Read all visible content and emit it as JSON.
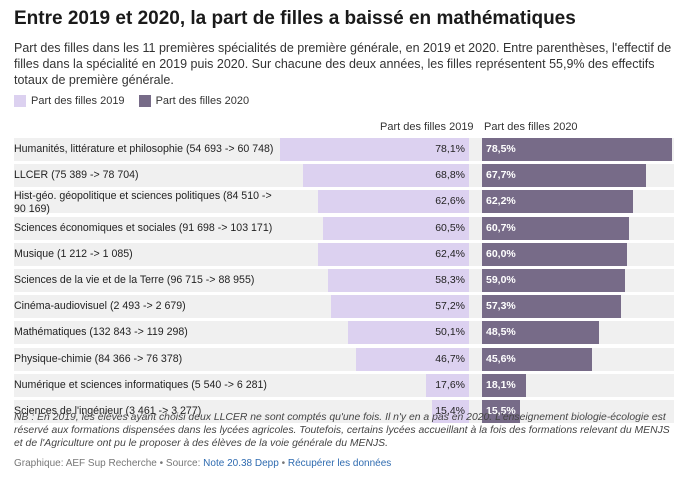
{
  "header": {
    "title": "Entre 2019 et 2020, la part de filles a baissé en mathématiques",
    "subtitle": "Part des filles dans les 11 premières spécialités de première générale, en 2019 et 2020. Entre parenthèses, l'effectif de filles dans la spécialité en 2019 puis 2020. Sur chacune des deux années, les filles représentent 55,9% des effectifs totaux de première générale."
  },
  "colors": {
    "y2019": "#dcd1f0",
    "y2020": "#776b88",
    "row_bg": "#f0f0f0",
    "link": "#2f6bb0"
  },
  "chart_data": {
    "type": "bar",
    "title": "Entre 2019 et 2020, la part de filles a baissé en mathématiques",
    "legend": [
      "Part des filles 2019",
      "Part des filles 2020"
    ],
    "legend_position": "top-left",
    "columns": [
      "Part des filles 2019",
      "Part des filles 2020"
    ],
    "ylim": [
      0,
      100
    ],
    "categories": [
      "Humanités, littérature et philosophie (54 693 -> 60 748)",
      "LLCER (75 389 -> 78 704)",
      "Hist-géo. géopolitique et sciences politiques (84 510 -> 90 169)",
      "Sciences économiques et sociales (91 698 -> 103 171)",
      "Musique (1 212 -> 1 085)",
      "Sciences de la vie et de la Terre (96 715 -> 88 955)",
      "Cinéma-audiovisuel (2 493 -> 2 679)",
      "Mathématiques (132 843 -> 119 298)",
      "Physique-chimie (84 366 -> 76 378)",
      "Numérique et sciences informatiques (5 540 -> 6 281)",
      "Sciences de l'ingénieur (3 461 -> 3 277)"
    ],
    "series": [
      {
        "name": "Part des filles 2019",
        "values": [
          78.1,
          68.8,
          62.6,
          60.5,
          62.4,
          58.3,
          57.2,
          50.1,
          46.7,
          17.6,
          15.4
        ],
        "labels": [
          "78,1%",
          "68,8%",
          "62,6%",
          "60,5%",
          "62,4%",
          "58,3%",
          "57,2%",
          "50,1%",
          "46,7%",
          "17,6%",
          "15,4%"
        ]
      },
      {
        "name": "Part des filles 2020",
        "values": [
          78.5,
          67.7,
          62.2,
          60.7,
          60.0,
          59.0,
          57.3,
          48.5,
          45.6,
          18.1,
          15.5
        ],
        "labels": [
          "78,5%",
          "67,7%",
          "62,2%",
          "60,7%",
          "60,0%",
          "59,0%",
          "57,3%",
          "48,5%",
          "45,6%",
          "18,1%",
          "15,5%"
        ]
      }
    ]
  },
  "footer": {
    "note": "NB : En 2019, les élèves ayant choisi deux LLCER ne sont comptés qu'une fois. Il n'y en a pas en 2020. L'enseignement biologie-écologie est réservé aux formations dispensées dans les lycées agricoles. Toutefois, certains lycées accueillant à la fois des formations relevant du MENJS et de l'Agriculture ont pu le proposer à des élèves de la voie générale du MENJS.",
    "graphic_prefix": "Graphique: AEF Sup Recherche • Source: ",
    "source_link": "Note 20.38 Depp",
    "separator": " • ",
    "download_link": "Récupérer les données"
  }
}
